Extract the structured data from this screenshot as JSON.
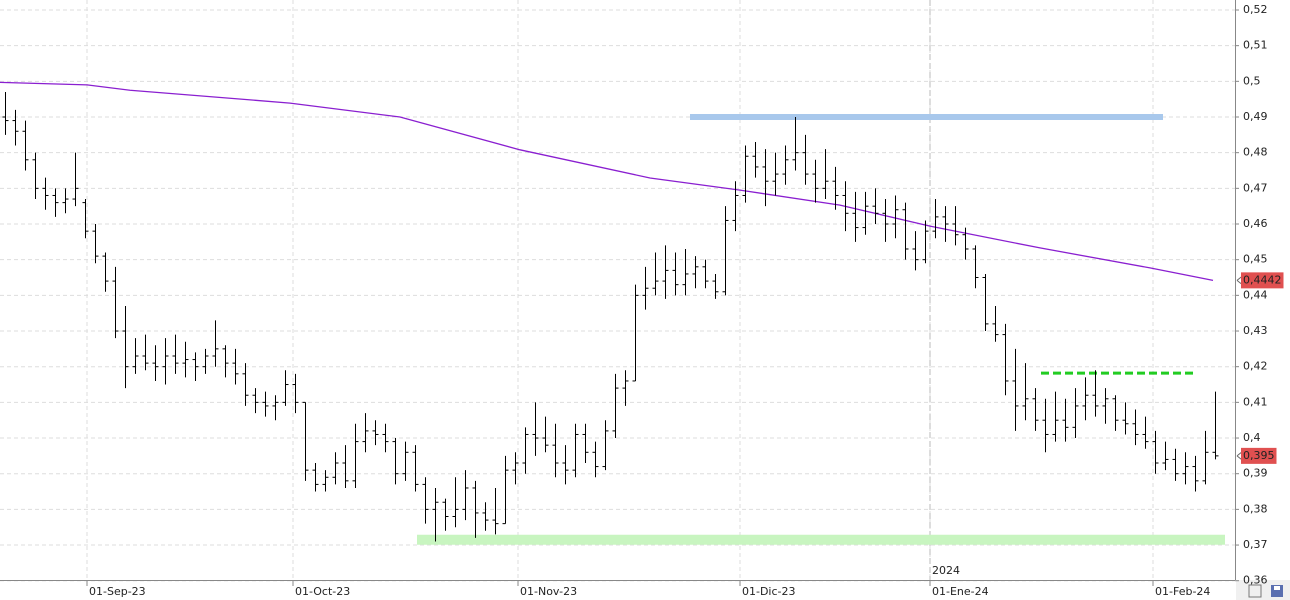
{
  "chart_data": {
    "type": "ohlc",
    "ylim": [
      0.3602,
      0.5228
    ],
    "yticks": [
      {
        "value": 0.52,
        "label": "0,52"
      },
      {
        "value": 0.51,
        "label": "0,51"
      },
      {
        "value": 0.5,
        "label": "0,5"
      },
      {
        "value": 0.49,
        "label": "0,49"
      },
      {
        "value": 0.48,
        "label": "0,48"
      },
      {
        "value": 0.47,
        "label": "0,47"
      },
      {
        "value": 0.46,
        "label": "0,46"
      },
      {
        "value": 0.45,
        "label": "0,45"
      },
      {
        "value": 0.44,
        "label": "0,44"
      },
      {
        "value": 0.43,
        "label": "0,43"
      },
      {
        "value": 0.42,
        "label": "0,42"
      },
      {
        "value": 0.41,
        "label": "0,41"
      },
      {
        "value": 0.4,
        "label": "0,4"
      },
      {
        "value": 0.39,
        "label": "0,39"
      },
      {
        "value": 0.38,
        "label": "0,38"
      },
      {
        "value": 0.37,
        "label": "0,37"
      },
      {
        "value": 0.36,
        "label": "0,36"
      }
    ],
    "xlim": [
      -0.5,
      123
    ],
    "xticks": [
      {
        "value": 8.2,
        "label": "01-Sep-23"
      },
      {
        "value": 28.8,
        "label": "01-Oct-23"
      },
      {
        "value": 51.3,
        "label": "01-Nov-23"
      },
      {
        "value": 73.5,
        "label": "01-Dic-23"
      },
      {
        "value": 92.5,
        "label": "01-Ene-24"
      },
      {
        "value": 114.8,
        "label": "01-Feb-24"
      }
    ],
    "year_marks": [
      {
        "value": 92.5,
        "label": "2024"
      }
    ],
    "grid": true,
    "bar_color": "#000000",
    "bars": [
      [
        0.49,
        0.497,
        0.485,
        0.489
      ],
      [
        0.489,
        0.492,
        0.482,
        0.486
      ],
      [
        0.486,
        0.489,
        0.475,
        0.478
      ],
      [
        0.478,
        0.48,
        0.467,
        0.47
      ],
      [
        0.47,
        0.473,
        0.464,
        0.468
      ],
      [
        0.468,
        0.47,
        0.462,
        0.466
      ],
      [
        0.466,
        0.47,
        0.463,
        0.467
      ],
      [
        0.467,
        0.48,
        0.465,
        0.47
      ],
      [
        0.466,
        0.467,
        0.456,
        0.458
      ],
      [
        0.458,
        0.46,
        0.449,
        0.451
      ],
      [
        0.451,
        0.452,
        0.441,
        0.444
      ],
      [
        0.444,
        0.448,
        0.428,
        0.43
      ],
      [
        0.43,
        0.437,
        0.414,
        0.42
      ],
      [
        0.42,
        0.428,
        0.418,
        0.423
      ],
      [
        0.423,
        0.429,
        0.419,
        0.421
      ],
      [
        0.421,
        0.426,
        0.416,
        0.42
      ],
      [
        0.42,
        0.428,
        0.415,
        0.423
      ],
      [
        0.423,
        0.429,
        0.418,
        0.421
      ],
      [
        0.421,
        0.427,
        0.417,
        0.422
      ],
      [
        0.422,
        0.424,
        0.416,
        0.42
      ],
      [
        0.42,
        0.425,
        0.418,
        0.423
      ],
      [
        0.423,
        0.433,
        0.42,
        0.425
      ],
      [
        0.425,
        0.426,
        0.417,
        0.421
      ],
      [
        0.421,
        0.425,
        0.415,
        0.418
      ],
      [
        0.418,
        0.421,
        0.409,
        0.412
      ],
      [
        0.412,
        0.414,
        0.407,
        0.41
      ],
      [
        0.41,
        0.413,
        0.406,
        0.409
      ],
      [
        0.409,
        0.412,
        0.405,
        0.41
      ],
      [
        0.41,
        0.419,
        0.409,
        0.415
      ],
      [
        0.415,
        0.418,
        0.407,
        0.41
      ],
      [
        0.41,
        0.41,
        0.388,
        0.391
      ],
      [
        0.391,
        0.393,
        0.385,
        0.387
      ],
      [
        0.387,
        0.391,
        0.385,
        0.389
      ],
      [
        0.389,
        0.396,
        0.387,
        0.393
      ],
      [
        0.393,
        0.398,
        0.386,
        0.388
      ],
      [
        0.388,
        0.404,
        0.386,
        0.399
      ],
      [
        0.399,
        0.407,
        0.396,
        0.402
      ],
      [
        0.402,
        0.405,
        0.398,
        0.401
      ],
      [
        0.401,
        0.404,
        0.396,
        0.399
      ],
      [
        0.399,
        0.4,
        0.387,
        0.39
      ],
      [
        0.39,
        0.399,
        0.388,
        0.396
      ],
      [
        0.396,
        0.398,
        0.385,
        0.387
      ],
      [
        0.387,
        0.389,
        0.376,
        0.38
      ],
      [
        0.38,
        0.386,
        0.371,
        0.382
      ],
      [
        0.382,
        0.383,
        0.374,
        0.378
      ],
      [
        0.378,
        0.389,
        0.375,
        0.38
      ],
      [
        0.38,
        0.391,
        0.377,
        0.386
      ],
      [
        0.386,
        0.388,
        0.372,
        0.379
      ],
      [
        0.379,
        0.382,
        0.374,
        0.377
      ],
      [
        0.377,
        0.386,
        0.373,
        0.376
      ],
      [
        0.376,
        0.395,
        0.376,
        0.391
      ],
      [
        0.391,
        0.396,
        0.387,
        0.393
      ],
      [
        0.393,
        0.403,
        0.39,
        0.401
      ],
      [
        0.401,
        0.41,
        0.395,
        0.4
      ],
      [
        0.4,
        0.406,
        0.396,
        0.398
      ],
      [
        0.398,
        0.404,
        0.389,
        0.393
      ],
      [
        0.393,
        0.398,
        0.387,
        0.391
      ],
      [
        0.391,
        0.404,
        0.389,
        0.401
      ],
      [
        0.401,
        0.404,
        0.393,
        0.396
      ],
      [
        0.396,
        0.399,
        0.389,
        0.392
      ],
      [
        0.392,
        0.405,
        0.391,
        0.402
      ],
      [
        0.402,
        0.418,
        0.4,
        0.414
      ],
      [
        0.414,
        0.419,
        0.409,
        0.416
      ],
      [
        0.416,
        0.443,
        0.416,
        0.44
      ],
      [
        0.44,
        0.448,
        0.436,
        0.442
      ],
      [
        0.442,
        0.452,
        0.44,
        0.444
      ],
      [
        0.444,
        0.454,
        0.439,
        0.447
      ],
      [
        0.447,
        0.452,
        0.44,
        0.443
      ],
      [
        0.443,
        0.453,
        0.44,
        0.446
      ],
      [
        0.446,
        0.451,
        0.442,
        0.448
      ],
      [
        0.448,
        0.45,
        0.442,
        0.444
      ],
      [
        0.444,
        0.446,
        0.439,
        0.441
      ],
      [
        0.441,
        0.465,
        0.44,
        0.461
      ],
      [
        0.461,
        0.472,
        0.458,
        0.468
      ],
      [
        0.468,
        0.482,
        0.466,
        0.479
      ],
      [
        0.479,
        0.483,
        0.473,
        0.476
      ],
      [
        0.476,
        0.481,
        0.465,
        0.472
      ],
      [
        0.472,
        0.48,
        0.468,
        0.474
      ],
      [
        0.474,
        0.482,
        0.471,
        0.478
      ],
      [
        0.478,
        0.49,
        0.475,
        0.48
      ],
      [
        0.48,
        0.485,
        0.471,
        0.474
      ],
      [
        0.474,
        0.478,
        0.466,
        0.47
      ],
      [
        0.47,
        0.481,
        0.467,
        0.472
      ],
      [
        0.472,
        0.476,
        0.464,
        0.468
      ],
      [
        0.468,
        0.472,
        0.458,
        0.463
      ],
      [
        0.463,
        0.469,
        0.455,
        0.459
      ],
      [
        0.459,
        0.469,
        0.457,
        0.465
      ],
      [
        0.465,
        0.47,
        0.46,
        0.463
      ],
      [
        0.463,
        0.467,
        0.455,
        0.46
      ],
      [
        0.46,
        0.468,
        0.456,
        0.464
      ],
      [
        0.464,
        0.466,
        0.45,
        0.453
      ],
      [
        0.453,
        0.458,
        0.447,
        0.45
      ],
      [
        0.45,
        0.461,
        0.449,
        0.458
      ],
      [
        0.458,
        0.467,
        0.456,
        0.462
      ],
      [
        0.462,
        0.465,
        0.455,
        0.46
      ],
      [
        0.46,
        0.465,
        0.454,
        0.457
      ],
      [
        0.457,
        0.459,
        0.45,
        0.453
      ],
      [
        0.453,
        0.454,
        0.442,
        0.445
      ],
      [
        0.445,
        0.446,
        0.43,
        0.432
      ],
      [
        0.432,
        0.437,
        0.427,
        0.429
      ],
      [
        0.429,
        0.432,
        0.412,
        0.416
      ],
      [
        0.416,
        0.425,
        0.402,
        0.409
      ],
      [
        0.409,
        0.421,
        0.405,
        0.411
      ],
      [
        0.411,
        0.414,
        0.402,
        0.405
      ],
      [
        0.405,
        0.411,
        0.396,
        0.401
      ],
      [
        0.401,
        0.413,
        0.399,
        0.405
      ],
      [
        0.405,
        0.411,
        0.399,
        0.403
      ],
      [
        0.403,
        0.414,
        0.4,
        0.409
      ],
      [
        0.409,
        0.417,
        0.405,
        0.412
      ],
      [
        0.412,
        0.419,
        0.406,
        0.409
      ],
      [
        0.409,
        0.414,
        0.404,
        0.411
      ],
      [
        0.411,
        0.412,
        0.402,
        0.405
      ],
      [
        0.405,
        0.41,
        0.401,
        0.404
      ],
      [
        0.404,
        0.408,
        0.398,
        0.401
      ],
      [
        0.401,
        0.406,
        0.397,
        0.399
      ],
      [
        0.399,
        0.402,
        0.39,
        0.393
      ],
      [
        0.393,
        0.399,
        0.391,
        0.394
      ],
      [
        0.394,
        0.397,
        0.388,
        0.39
      ],
      [
        0.39,
        0.396,
        0.387,
        0.392
      ],
      [
        0.392,
        0.395,
        0.385,
        0.388
      ],
      [
        0.388,
        0.402,
        0.387,
        0.396
      ],
      [
        0.396,
        0.413,
        0.394,
        0.395
      ]
    ],
    "ma": {
      "color": "#8a1fd0",
      "x": [
        -0.5,
        8.2,
        12.5,
        28.5,
        39.5,
        51.5,
        64.5,
        73.5,
        83.5,
        92.5,
        103.5,
        114.5,
        120.8
      ],
      "values": [
        0.4997,
        0.499,
        0.4975,
        0.4939,
        0.49,
        0.4808,
        0.4729,
        0.4695,
        0.4653,
        0.4594,
        0.4533,
        0.4477,
        0.4442
      ]
    },
    "levels": [
      {
        "value": 0.49,
        "x": [
          68.5,
          115.8
        ],
        "color": "#a8c8ec",
        "style": "band"
      },
      {
        "value": 0.3715,
        "x": [
          41.2,
          122
        ],
        "color": "#c8f5c0",
        "style": "band"
      },
      {
        "value": 0.4182,
        "x": [
          103.6,
          119
        ],
        "color": "#22cc22",
        "style": "dashed"
      }
    ],
    "price_labels": [
      {
        "value": 0.4442,
        "label": "0,4442"
      },
      {
        "value": 0.395,
        "label": "0,395"
      }
    ],
    "price_label_color": "#e05050"
  }
}
